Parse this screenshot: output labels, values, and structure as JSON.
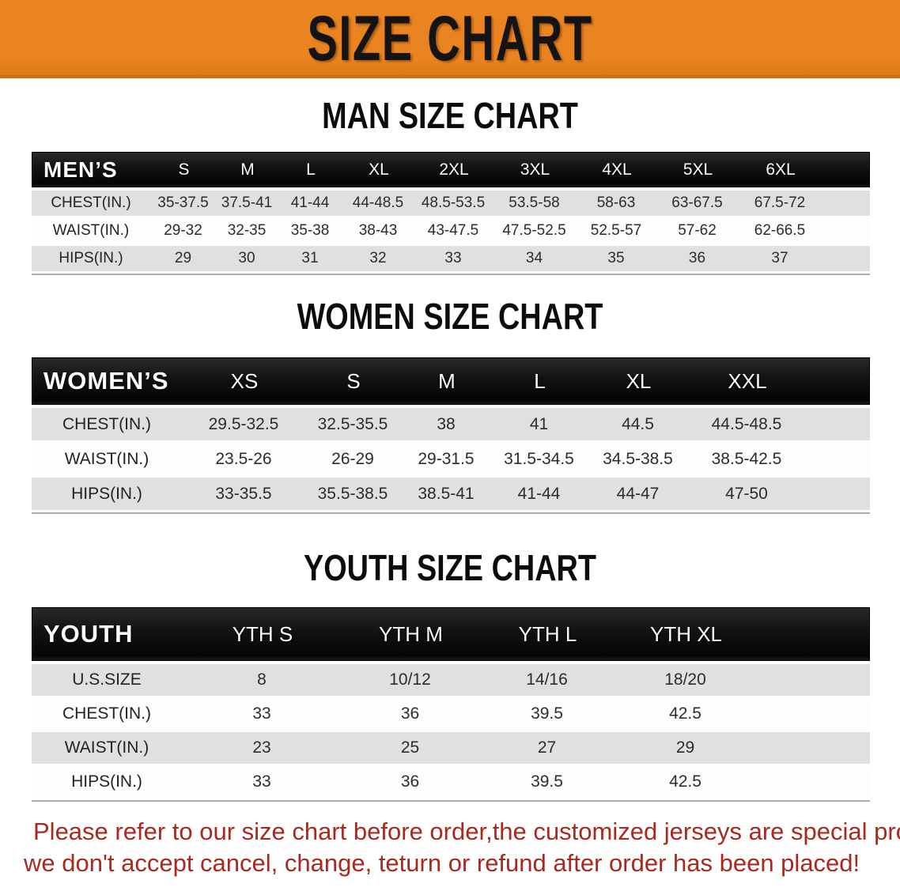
{
  "banner": {
    "title": "SIZE CHART"
  },
  "colors": {
    "banner_bg": "#E98420",
    "banner_edge": "#D06E10",
    "bar_bg": "#121212",
    "row_gray": "#E0E0E0",
    "notice_red": "#A8291F"
  },
  "men_table": {
    "title": "MAN SIZE CHART",
    "header": [
      "MEN’S",
      "S",
      "M",
      "L",
      "XL",
      "2XL",
      "3XL",
      "4XL",
      "5XL",
      "6XL"
    ],
    "rows": [
      {
        "label": "CHEST(IN.)",
        "values": [
          "35-37.5",
          "37.5-41",
          "41-44",
          "44-48.5",
          "48.5-53.5",
          "53.5-58",
          "58-63",
          "63-67.5",
          "67.5-72"
        ]
      },
      {
        "label": "WAIST(IN.)",
        "values": [
          "29-32",
          "32-35",
          "35-38",
          "38-43",
          "43-47.5",
          "47.5-52.5",
          "52.5-57",
          "57-62",
          "62-66.5"
        ]
      },
      {
        "label": "HIPS(IN.)",
        "values": [
          "29",
          "30",
          "31",
          "32",
          "33",
          "34",
          "35",
          "36",
          "37"
        ]
      }
    ]
  },
  "women_table": {
    "title": "WOMEN SIZE CHART",
    "header": [
      "WOMEN’S",
      "XS",
      "S",
      "M",
      "L",
      "XL",
      "XXL"
    ],
    "rows": [
      {
        "label": "CHEST(IN.)",
        "values": [
          "29.5-32.5",
          "32.5-35.5",
          "38",
          "41",
          "44.5",
          "44.5-48.5"
        ]
      },
      {
        "label": "WAIST(IN.)",
        "values": [
          "23.5-26",
          "26-29",
          "29-31.5",
          "31.5-34.5",
          "34.5-38.5",
          "38.5-42.5"
        ]
      },
      {
        "label": "HIPS(IN.)",
        "values": [
          "33-35.5",
          "35.5-38.5",
          "38.5-41",
          "41-44",
          "44-47",
          "47-50"
        ]
      }
    ]
  },
  "youth_table": {
    "title": "YOUTH SIZE CHART",
    "header": [
      "YOUTH",
      "YTH S",
      "YTH M",
      "YTH L",
      "YTH XL"
    ],
    "rows": [
      {
        "label": "U.S.SIZE",
        "values": [
          "8",
          "10/12",
          "14/16",
          "18/20"
        ]
      },
      {
        "label": "CHEST(IN.)",
        "values": [
          "33",
          "36",
          "39.5",
          "42.5"
        ]
      },
      {
        "label": "WAIST(IN.)",
        "values": [
          "23",
          "25",
          "27",
          "29"
        ]
      },
      {
        "label": "HIPS(IN.)",
        "values": [
          "33",
          "36",
          "39.5",
          "42.5"
        ]
      }
    ]
  },
  "notice": {
    "line1": "Please refer to our size chart before order,the customized jerseys are special products,",
    "line2": "we don't accept cancel, change, teturn or refund after order has been placed!"
  }
}
